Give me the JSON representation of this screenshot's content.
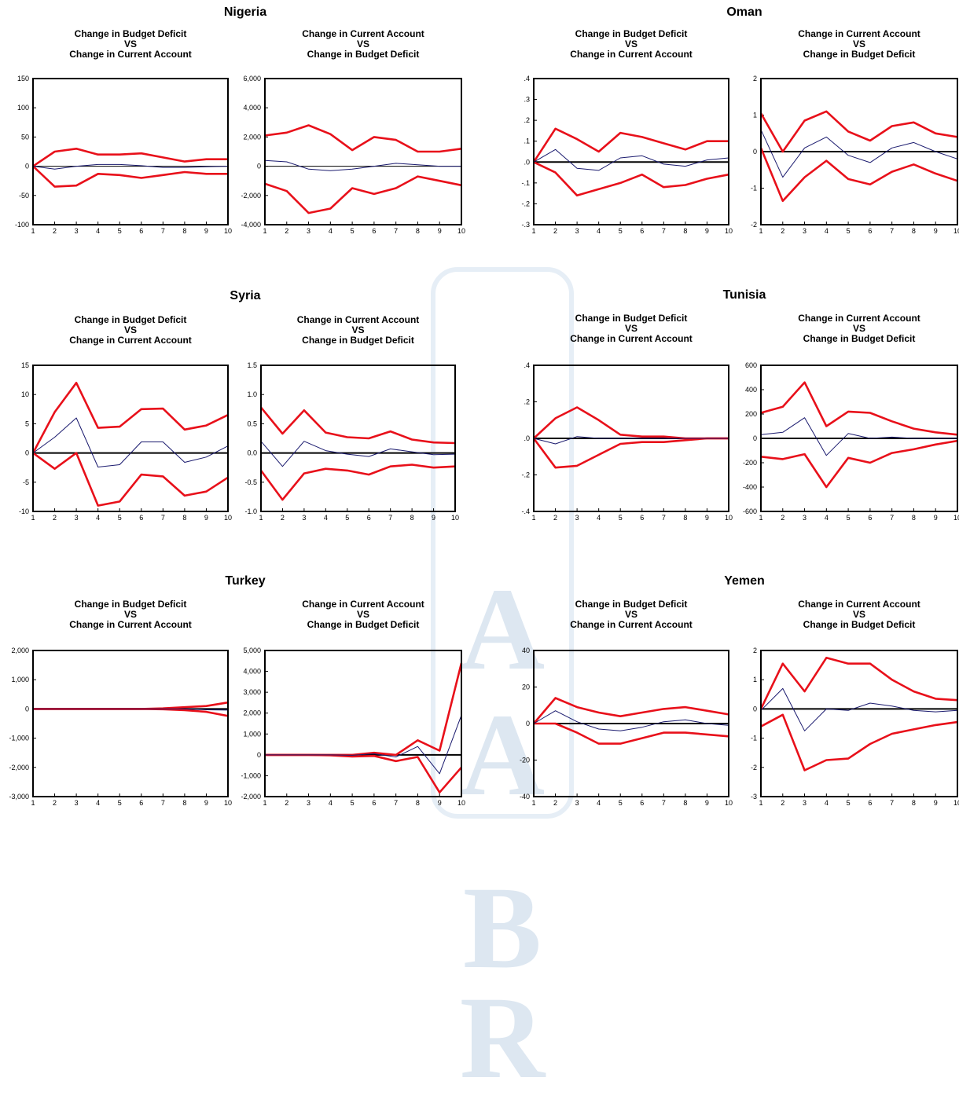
{
  "x_ticks": [
    "1",
    "2",
    "3",
    "4",
    "5",
    "6",
    "7",
    "8",
    "9",
    "10"
  ],
  "colors": {
    "band": "#e8101a",
    "response": "#1a1a6e",
    "zero": "#000000"
  },
  "countries": [
    {
      "name": "Nigeria"
    },
    {
      "name": "Oman"
    },
    {
      "name": "Syria"
    },
    {
      "name": "Tunisia"
    },
    {
      "name": "Turkey"
    },
    {
      "name": "Yemen"
    }
  ],
  "chart_data": [
    {
      "type": "line",
      "country": "Nigeria",
      "title": "Change in Budget Deficit\nVS\nChange in Current Account",
      "x": [
        1,
        2,
        3,
        4,
        5,
        6,
        7,
        8,
        9,
        10
      ],
      "ylim": [
        -100,
        150
      ],
      "y_ticks": [
        "150",
        "100",
        "50",
        "0",
        "-50",
        "-100"
      ],
      "y_tick_values": [
        150,
        100,
        50,
        0,
        -50,
        -100
      ],
      "series": [
        {
          "values": [
            0,
            25,
            30,
            20,
            20,
            22,
            15,
            8,
            12,
            12
          ]
        },
        {
          "values": [
            0,
            -5,
            0,
            3,
            3,
            1,
            -2,
            -2,
            -1,
            0
          ]
        },
        {
          "values": [
            0,
            -35,
            -33,
            -13,
            -15,
            -20,
            -15,
            -10,
            -13,
            -13
          ]
        }
      ]
    },
    {
      "type": "line",
      "country": "Nigeria",
      "title": "Change in Current Account\nVS\nChange in Budget Deficit",
      "x": [
        1,
        2,
        3,
        4,
        5,
        6,
        7,
        8,
        9,
        10
      ],
      "ylim": [
        -4000,
        6000
      ],
      "y_ticks": [
        "6,000",
        "4,000",
        "2,000",
        "0",
        "-2,000",
        "-4,000"
      ],
      "y_tick_values": [
        6000,
        4000,
        2000,
        0,
        -2000,
        -4000
      ],
      "series": [
        {
          "values": [
            2100,
            2300,
            2800,
            2200,
            1100,
            2000,
            1800,
            1000,
            1000,
            1200
          ]
        },
        {
          "values": [
            400,
            300,
            -200,
            -300,
            -200,
            0,
            200,
            100,
            0,
            0
          ]
        },
        {
          "values": [
            -1200,
            -1700,
            -3200,
            -2900,
            -1500,
            -1900,
            -1500,
            -700,
            -1000,
            -1300
          ]
        }
      ]
    },
    {
      "type": "line",
      "country": "Oman",
      "title": "Change in Budget Deficit\nVS\nChange in Current Account",
      "x": [
        1,
        2,
        3,
        4,
        5,
        6,
        7,
        8,
        9,
        10
      ],
      "ylim": [
        -0.3,
        0.4
      ],
      "y_ticks": [
        ".4",
        ".3",
        ".2",
        ".1",
        ".0",
        "-.1",
        "-.2",
        "-.3"
      ],
      "y_tick_values": [
        0.4,
        0.3,
        0.2,
        0.1,
        0,
        -0.1,
        -0.2,
        -0.3
      ],
      "series": [
        {
          "values": [
            0,
            0.16,
            0.11,
            0.05,
            0.14,
            0.12,
            0.09,
            0.06,
            0.1,
            0.1
          ]
        },
        {
          "values": [
            0,
            0.06,
            -0.03,
            -0.04,
            0.02,
            0.03,
            -0.01,
            -0.02,
            0.01,
            0.02
          ]
        },
        {
          "values": [
            0,
            -0.05,
            -0.16,
            -0.13,
            -0.1,
            -0.06,
            -0.12,
            -0.11,
            -0.08,
            -0.06
          ]
        }
      ]
    },
    {
      "type": "line",
      "country": "Oman",
      "title": "Change in Current Account\nVS\nChange in Budget Deficit",
      "x": [
        1,
        2,
        3,
        4,
        5,
        6,
        7,
        8,
        9,
        10
      ],
      "ylim": [
        -2,
        2
      ],
      "y_ticks": [
        "2",
        "1",
        "0",
        "-1",
        "-2"
      ],
      "y_tick_values": [
        2,
        1,
        0,
        -1,
        -2
      ],
      "series": [
        {
          "values": [
            1.05,
            0,
            0.85,
            1.1,
            0.55,
            0.3,
            0.7,
            0.8,
            0.5,
            0.4
          ]
        },
        {
          "values": [
            0.6,
            -0.7,
            0.1,
            0.4,
            -0.1,
            -0.3,
            0.1,
            0.25,
            0,
            -0.2
          ]
        },
        {
          "values": [
            0.1,
            -1.35,
            -0.7,
            -0.25,
            -0.75,
            -0.9,
            -0.55,
            -0.35,
            -0.6,
            -0.8
          ]
        }
      ]
    },
    {
      "type": "line",
      "country": "Syria",
      "title": "Change in Budget Deficit\nVS\nChange in Current Account",
      "x": [
        1,
        2,
        3,
        4,
        5,
        6,
        7,
        8,
        9,
        10
      ],
      "ylim": [
        -10,
        15
      ],
      "y_ticks": [
        "15",
        "10",
        "5",
        "0",
        "-5",
        "-10"
      ],
      "y_tick_values": [
        15,
        10,
        5,
        0,
        -5,
        -10
      ],
      "series": [
        {
          "values": [
            0,
            7,
            12,
            4.3,
            4.5,
            7.5,
            7.6,
            4,
            4.7,
            6.5
          ]
        },
        {
          "values": [
            0,
            2.7,
            6,
            -2.4,
            -2,
            1.9,
            1.9,
            -1.6,
            -0.7,
            1.2
          ]
        },
        {
          "values": [
            0,
            -2.7,
            0,
            -9,
            -8.3,
            -3.7,
            -4,
            -7.3,
            -6.6,
            -4.2
          ]
        }
      ]
    },
    {
      "type": "line",
      "country": "Syria",
      "title": "Change in Current Account\nVS\nChange in Budget Deficit",
      "x": [
        1,
        2,
        3,
        4,
        5,
        6,
        7,
        8,
        9,
        10
      ],
      "ylim": [
        -1.0,
        1.5
      ],
      "y_ticks": [
        "1.5",
        "1.0",
        "0.5",
        "0.0",
        "-0.5",
        "-1.0"
      ],
      "y_tick_values": [
        1.5,
        1,
        0.5,
        0,
        -0.5,
        -1
      ],
      "series": [
        {
          "values": [
            0.78,
            0.33,
            0.73,
            0.35,
            0.27,
            0.25,
            0.37,
            0.23,
            0.18,
            0.17
          ]
        },
        {
          "values": [
            0.2,
            -0.23,
            0.2,
            0.04,
            -0.02,
            -0.06,
            0.07,
            0.02,
            -0.03,
            -0.02
          ]
        },
        {
          "values": [
            -0.3,
            -0.8,
            -0.35,
            -0.27,
            -0.3,
            -0.37,
            -0.23,
            -0.2,
            -0.25,
            -0.23
          ]
        }
      ]
    },
    {
      "type": "line",
      "country": "Tunisia",
      "title": "Change in Budget Deficit\nVS\nChange in Current Account",
      "x": [
        1,
        2,
        3,
        4,
        5,
        6,
        7,
        8,
        9,
        10
      ],
      "ylim": [
        -0.4,
        0.4
      ],
      "y_ticks": [
        ".4",
        ".2",
        ".0",
        "-.2",
        "-.4"
      ],
      "y_tick_values": [
        0.4,
        0.2,
        0,
        -0.2,
        -0.4
      ],
      "series": [
        {
          "values": [
            0,
            0.11,
            0.17,
            0.1,
            0.02,
            0.01,
            0.01,
            0,
            0,
            0
          ]
        },
        {
          "values": [
            0,
            -0.03,
            0.01,
            0,
            0,
            0,
            0,
            0,
            0,
            0
          ]
        },
        {
          "values": [
            0,
            -0.16,
            -0.15,
            -0.09,
            -0.03,
            -0.02,
            -0.02,
            -0.01,
            0,
            0
          ]
        }
      ]
    },
    {
      "type": "line",
      "country": "Tunisia",
      "title": "Change in Current Account\nVS\nChange in Budget Deficit",
      "x": [
        1,
        2,
        3,
        4,
        5,
        6,
        7,
        8,
        9,
        10
      ],
      "ylim": [
        -600,
        600
      ],
      "y_ticks": [
        "600",
        "400",
        "200",
        "0",
        "-200",
        "-400",
        "-600"
      ],
      "y_tick_values": [
        600,
        400,
        200,
        0,
        -200,
        -400,
        -600
      ],
      "series": [
        {
          "values": [
            210,
            260,
            460,
            100,
            220,
            210,
            140,
            80,
            50,
            30
          ]
        },
        {
          "values": [
            30,
            50,
            170,
            -140,
            40,
            0,
            10,
            0,
            0,
            0
          ]
        },
        {
          "values": [
            -150,
            -170,
            -130,
            -400,
            -160,
            -200,
            -120,
            -90,
            -50,
            -20
          ]
        }
      ]
    },
    {
      "type": "line",
      "country": "Turkey",
      "title": "Change in Budget Deficit\nVS\nChange in Current Account",
      "x": [
        1,
        2,
        3,
        4,
        5,
        6,
        7,
        8,
        9,
        10
      ],
      "ylim": [
        -3000,
        2000
      ],
      "y_ticks": [
        "2,000",
        "1,000",
        "0",
        "-1,000",
        "-2,000",
        "-3,000"
      ],
      "y_tick_values": [
        2000,
        1000,
        0,
        -1000,
        -2000,
        -3000
      ],
      "series": [
        {
          "values": [
            0,
            0,
            0,
            0,
            0,
            0,
            20,
            60,
            100,
            220
          ]
        },
        {
          "values": [
            0,
            0,
            0,
            0,
            0,
            0,
            0,
            0,
            -30,
            -40
          ]
        },
        {
          "values": [
            0,
            0,
            0,
            0,
            0,
            0,
            -10,
            -40,
            -100,
            -240
          ]
        }
      ]
    },
    {
      "type": "line",
      "country": "Turkey",
      "title": "Change in Current Account\nVS\nChange in Budget Deficit",
      "x": [
        1,
        2,
        3,
        4,
        5,
        6,
        7,
        8,
        9,
        10
      ],
      "ylim": [
        -2000,
        5000
      ],
      "y_ticks": [
        "5,000",
        "4,000",
        "3,000",
        "2,000",
        "1,000",
        "0",
        "-1,000",
        "-2,000"
      ],
      "y_tick_values": [
        5000,
        4000,
        3000,
        2000,
        1000,
        0,
        -1000,
        -2000
      ],
      "series": [
        {
          "values": [
            0,
            0,
            0,
            0,
            0,
            100,
            0,
            700,
            200,
            4400
          ]
        },
        {
          "values": [
            0,
            0,
            0,
            0,
            -20,
            50,
            -100,
            400,
            -900,
            1900
          ]
        },
        {
          "values": [
            0,
            0,
            0,
            -20,
            -80,
            -50,
            -300,
            -100,
            -1800,
            -600
          ]
        }
      ]
    },
    {
      "type": "line",
      "country": "Yemen",
      "title": "Change in Budget Deficit\nVS\nChange in Current Account",
      "x": [
        1,
        2,
        3,
        4,
        5,
        6,
        7,
        8,
        9,
        10
      ],
      "ylim": [
        -40,
        40
      ],
      "y_ticks": [
        "40",
        "20",
        "0",
        "-20",
        "-40"
      ],
      "y_tick_values": [
        40,
        20,
        0,
        -20,
        -40
      ],
      "series": [
        {
          "values": [
            0,
            14,
            9,
            6,
            4,
            6,
            8,
            9,
            7,
            5
          ]
        },
        {
          "values": [
            0,
            7,
            1,
            -3,
            -4,
            -2,
            1,
            2,
            0,
            -1
          ]
        },
        {
          "values": [
            0,
            0,
            -5,
            -11,
            -11,
            -8,
            -5,
            -5,
            -6,
            -7
          ]
        }
      ]
    },
    {
      "type": "line",
      "country": "Yemen",
      "title": "Change in Current Account\nVS\nChange in Budget Deficit",
      "x": [
        1,
        2,
        3,
        4,
        5,
        6,
        7,
        8,
        9,
        10
      ],
      "ylim": [
        -3,
        2
      ],
      "y_ticks": [
        "2",
        "1",
        "0",
        "-1",
        "-2",
        "-3"
      ],
      "y_tick_values": [
        2,
        1,
        0,
        -1,
        -2,
        -3
      ],
      "series": [
        {
          "values": [
            0,
            1.55,
            0.6,
            1.75,
            1.55,
            1.55,
            1,
            0.6,
            0.35,
            0.3
          ]
        },
        {
          "values": [
            -0.05,
            0.7,
            -0.75,
            0,
            -0.05,
            0.2,
            0.1,
            -0.05,
            -0.1,
            -0.05
          ]
        },
        {
          "values": [
            -0.6,
            -0.2,
            -2.1,
            -1.75,
            -1.7,
            -1.2,
            -0.85,
            -0.7,
            -0.55,
            -0.45
          ]
        }
      ]
    }
  ]
}
